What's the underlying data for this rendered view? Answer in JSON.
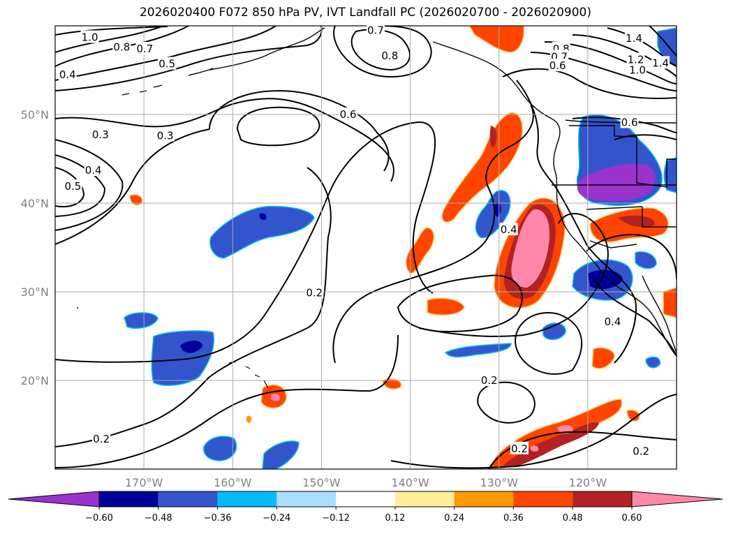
{
  "title": "2026020400 F072 850 hPa PV, IVT Landfall PC (2026020700 - 2026020900)",
  "map": {
    "lon_range": [
      -180,
      -110
    ],
    "lat_range": [
      10,
      60
    ],
    "lon_ticks": [
      {
        "value": -170,
        "label": "170°W"
      },
      {
        "value": -160,
        "label": "160°W"
      },
      {
        "value": -150,
        "label": "150°W"
      },
      {
        "value": -140,
        "label": "140°W"
      },
      {
        "value": -130,
        "label": "130°W"
      },
      {
        "value": -120,
        "label": "120°W"
      }
    ],
    "lat_ticks": [
      {
        "value": 20,
        "label": "20°N"
      },
      {
        "value": 30,
        "label": "30°N"
      },
      {
        "value": 40,
        "label": "40°N"
      },
      {
        "value": 50,
        "label": "50°N"
      }
    ],
    "grid": true
  },
  "contour_labels": [
    {
      "text": "1.0",
      "lon": -176.1,
      "lat": 58.7
    },
    {
      "text": "0.8",
      "lon": -172.5,
      "lat": 57.6
    },
    {
      "text": "0.7",
      "lon": -169.9,
      "lat": 57.4
    },
    {
      "text": "0.5",
      "lon": -167.4,
      "lat": 55.7
    },
    {
      "text": "0.4",
      "lon": -178.6,
      "lat": 54.5
    },
    {
      "text": "0.3",
      "lon": -174.9,
      "lat": 47.7
    },
    {
      "text": "0.3",
      "lon": -167.6,
      "lat": 47.6
    },
    {
      "text": "0.4",
      "lon": -175.7,
      "lat": 43.7
    },
    {
      "text": "0.5",
      "lon": -178.0,
      "lat": 41.9
    },
    {
      "text": "0.6",
      "lon": -147.0,
      "lat": 50.0
    },
    {
      "text": "0.7",
      "lon": -143.9,
      "lat": 59.5
    },
    {
      "text": "0.8",
      "lon": -142.3,
      "lat": 56.6
    },
    {
      "text": "0.4",
      "lon": -128.9,
      "lat": 37.0
    },
    {
      "text": "0.2",
      "lon": -150.8,
      "lat": 29.9
    },
    {
      "text": "0.2",
      "lon": -131.1,
      "lat": 20.0
    },
    {
      "text": "0.2",
      "lon": -127.7,
      "lat": 12.3
    },
    {
      "text": "0.2",
      "lon": -114.0,
      "lat": 12.0
    },
    {
      "text": "0.2",
      "lon": -174.8,
      "lat": 13.4
    },
    {
      "text": "0.4",
      "lon": -117.2,
      "lat": 26.6
    },
    {
      "text": "0.6",
      "lon": -115.3,
      "lat": 49.1
    },
    {
      "text": "1.4",
      "lon": -114.8,
      "lat": 58.6
    },
    {
      "text": "1.2",
      "lon": -114.6,
      "lat": 56.2
    },
    {
      "text": "1.0",
      "lon": -114.4,
      "lat": 55.0
    },
    {
      "text": "0.8",
      "lon": -123.0,
      "lat": 57.4
    },
    {
      "text": "0.7",
      "lon": -123.2,
      "lat": 56.5
    },
    {
      "text": "0.6",
      "lon": -123.4,
      "lat": 55.5
    },
    {
      "text": "1.4",
      "lon": -111.8,
      "lat": 55.8
    }
  ],
  "colorbar": {
    "ticks": [
      "−0.60",
      "−0.48",
      "−0.36",
      "−0.24",
      "−0.12",
      "0.12",
      "0.24",
      "0.36",
      "0.48",
      "0.60"
    ],
    "colors": [
      "#9933cc",
      "#000099",
      "#3355cc",
      "#00bbff",
      "#aaddff",
      "#ffffff",
      "#ffee99",
      "#ff9900",
      "#ff4400",
      "#b22222",
      "#ff88aa"
    ]
  }
}
